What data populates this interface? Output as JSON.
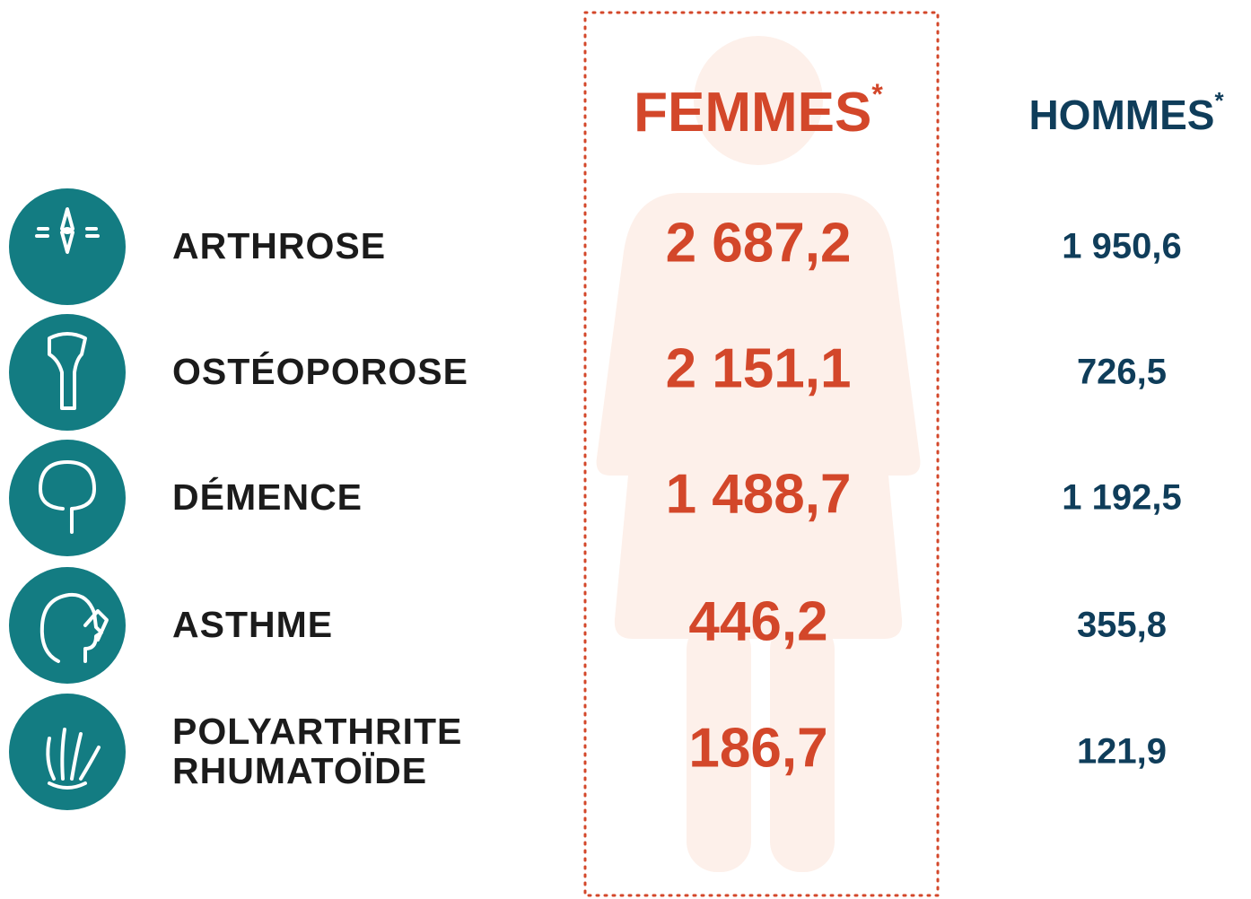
{
  "header": {
    "women": {
      "label": "FEMMES",
      "mark": "*"
    },
    "men": {
      "label": "HOMMES",
      "mark": "*"
    }
  },
  "rows": [
    {
      "label": [
        "ARTHROSE"
      ],
      "women": "2 687,2",
      "men": "1 950,6"
    },
    {
      "label": [
        "OSTÉOPOROSE"
      ],
      "women": "2 151,1",
      "men": "726,5"
    },
    {
      "label": [
        "DÉMENCE"
      ],
      "women": "1 488,7",
      "men": "1 192,5"
    },
    {
      "label": [
        "ASTHME"
      ],
      "women": "446,2",
      "men": "355,8"
    },
    {
      "label": [
        "POLYARTHRITE",
        "RHUMATOÏDE"
      ],
      "women": "186,7",
      "men": "121,9"
    }
  ]
}
